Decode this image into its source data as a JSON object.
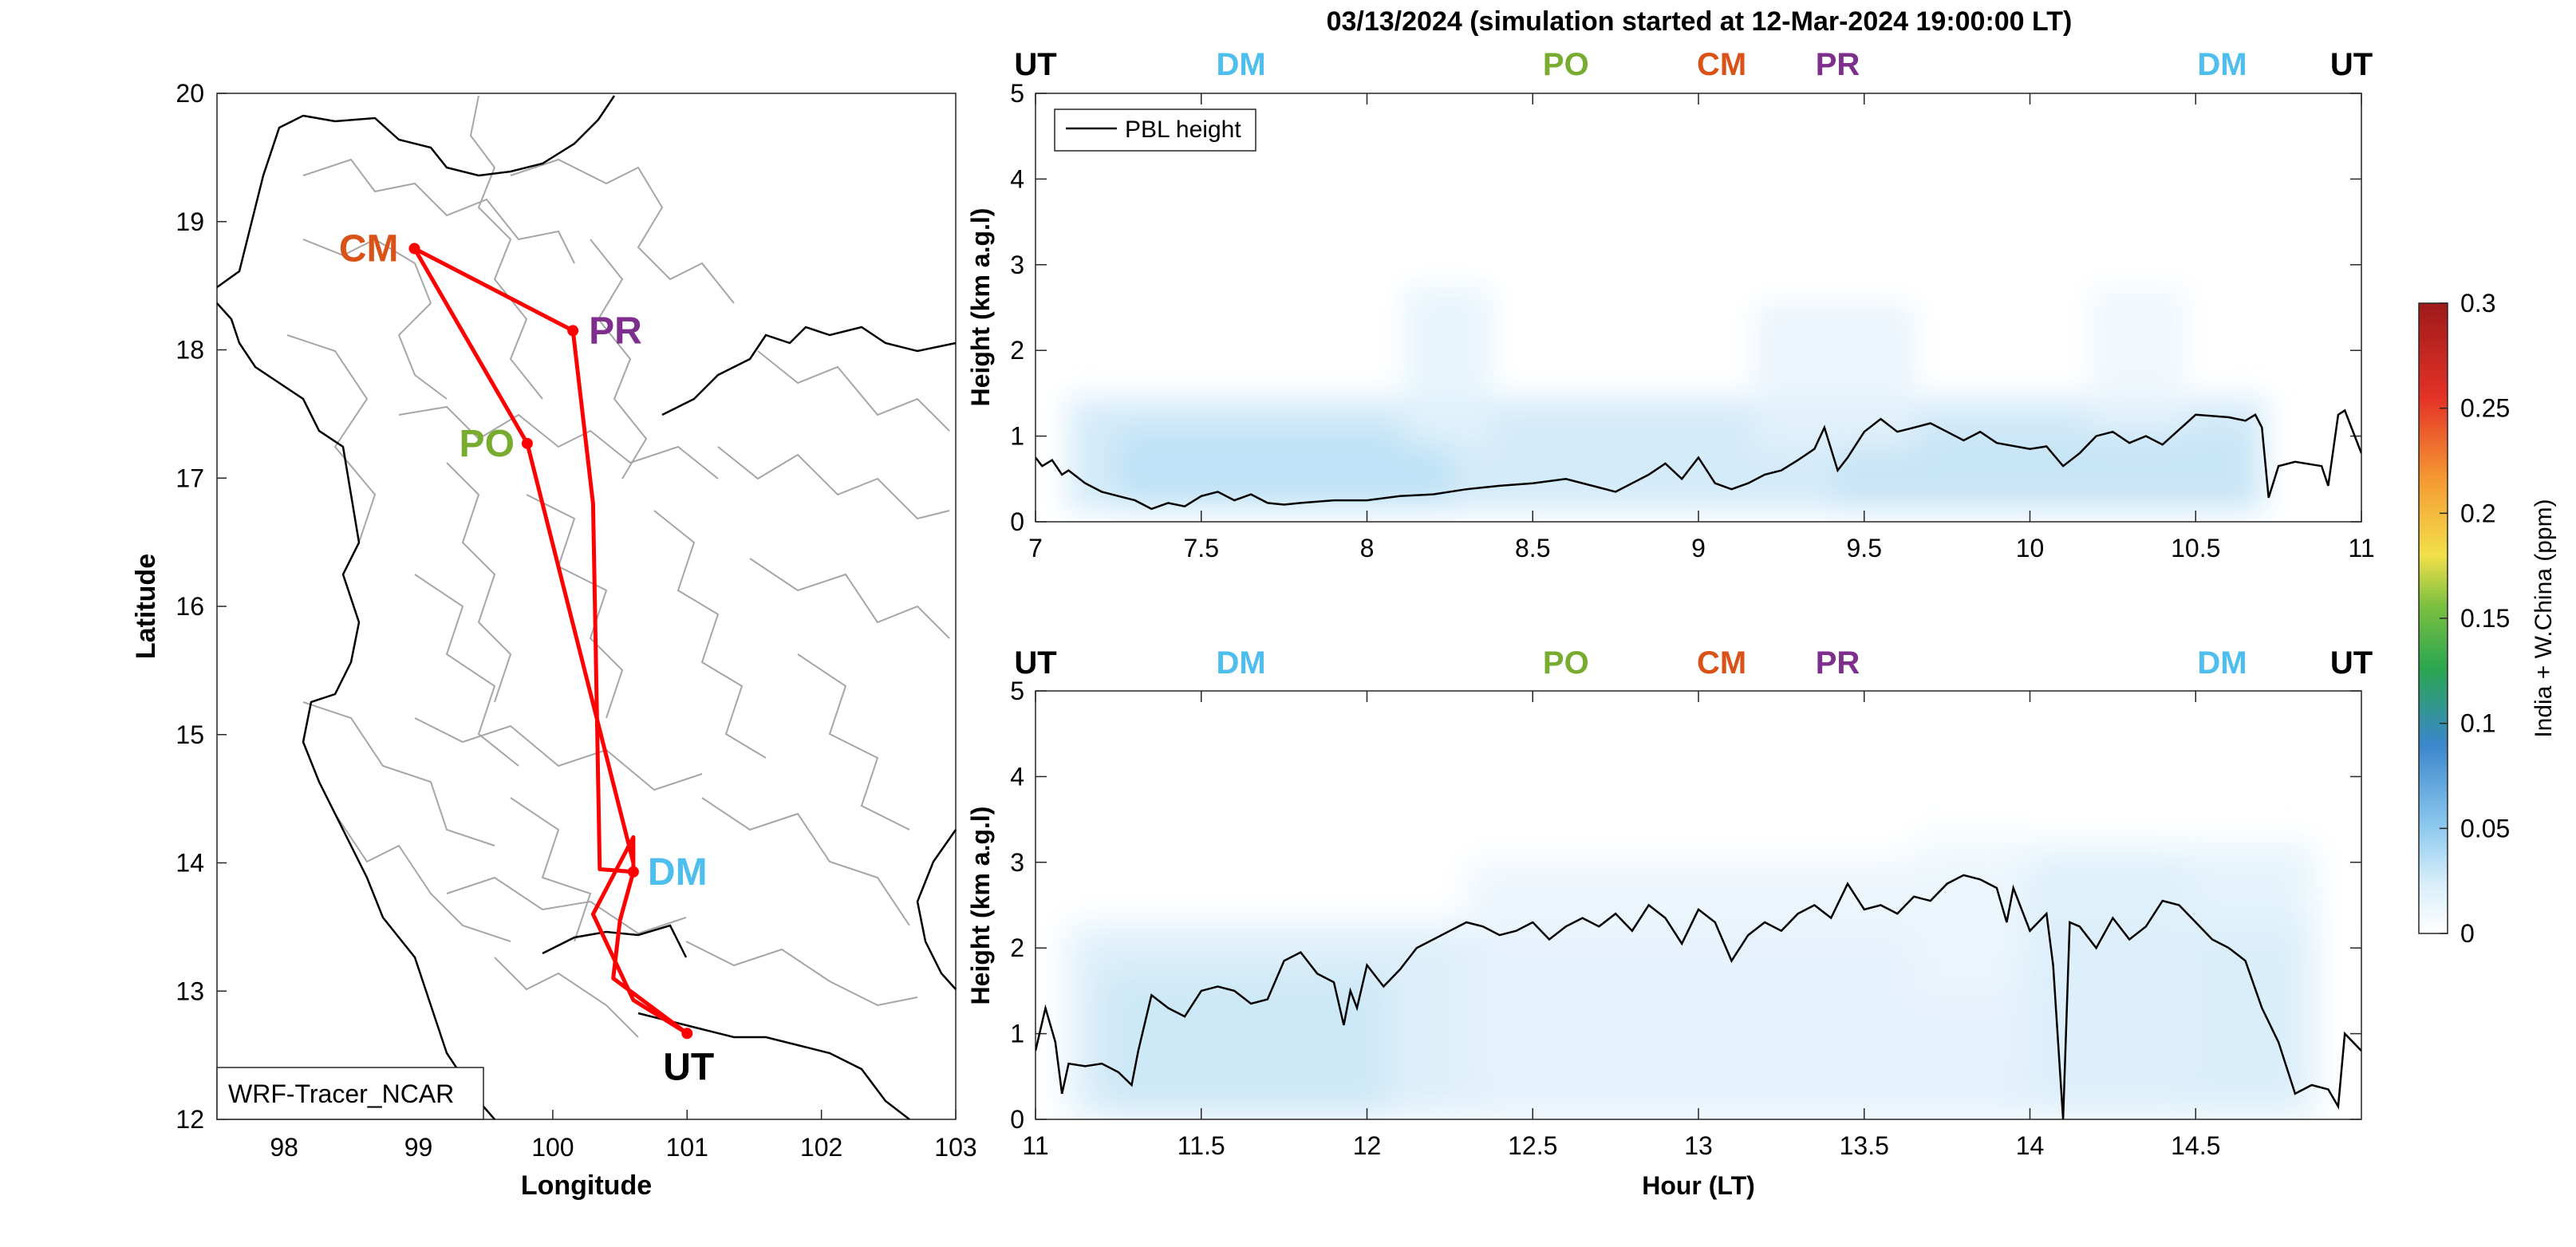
{
  "figure": {
    "title": "03/13/2024 (simulation started at 12-Mar-2024 19:00:00 LT)"
  },
  "colors": {
    "UT": "#000000",
    "DM": "#4DBEEE",
    "PO": "#77AC30",
    "CM": "#D95319",
    "PR": "#7E2F8E",
    "track": "#FF0000",
    "pbl": "#000000",
    "border": "#999999",
    "coast": "#000000"
  },
  "chart_data": [
    {
      "type": "line",
      "id": "map",
      "xlabel": "Longitude",
      "ylabel": "Latitude",
      "xlim": [
        97.5,
        103
      ],
      "ylim": [
        12,
        20
      ],
      "xticks": [
        98,
        99,
        100,
        101,
        102,
        103
      ],
      "yticks": [
        12,
        13,
        14,
        15,
        16,
        17,
        18,
        19,
        20
      ],
      "legend": {
        "text": "WRF-Tracer_NCAR",
        "position": "bottom-left"
      },
      "stations": [
        {
          "code": "CM",
          "lon": 98.97,
          "lat": 18.79
        },
        {
          "code": "PR",
          "lon": 100.15,
          "lat": 18.15
        },
        {
          "code": "PO",
          "lon": 99.81,
          "lat": 17.27
        },
        {
          "code": "DM",
          "lon": 100.6,
          "lat": 13.93
        },
        {
          "code": "UT",
          "lon": 101.0,
          "lat": 12.67
        }
      ],
      "track": [
        [
          101.0,
          12.67
        ],
        [
          100.6,
          12.93
        ],
        [
          100.3,
          13.6
        ],
        [
          100.6,
          14.2
        ],
        [
          100.6,
          13.93
        ],
        [
          100.6,
          14.0
        ],
        [
          99.81,
          17.27
        ],
        [
          98.97,
          18.79
        ],
        [
          100.15,
          18.15
        ],
        [
          100.3,
          16.8
        ],
        [
          100.35,
          13.95
        ],
        [
          100.6,
          13.93
        ],
        [
          100.5,
          13.55
        ],
        [
          100.45,
          13.1
        ],
        [
          101.0,
          12.67
        ]
      ]
    },
    {
      "type": "line",
      "id": "top",
      "ylabel": "Height (km a.g.l)",
      "xlabel": "",
      "xlim": [
        7,
        11
      ],
      "ylim": [
        0,
        5
      ],
      "xticks": [
        7,
        7.5,
        8,
        8.5,
        9,
        9.5,
        10,
        10.5,
        11
      ],
      "yticks": [
        0,
        1,
        2,
        3,
        4,
        5
      ],
      "legend": {
        "text": "PBL height",
        "position": "top-left"
      },
      "markers": [
        {
          "code": "UT",
          "x": 7.0
        },
        {
          "code": "DM",
          "x": 7.62
        },
        {
          "code": "PO",
          "x": 8.6
        },
        {
          "code": "CM",
          "x": 9.07
        },
        {
          "code": "PR",
          "x": 9.42
        },
        {
          "code": "DM",
          "x": 10.58
        },
        {
          "code": "UT",
          "x": 10.97
        }
      ],
      "series": [
        {
          "x": [
            7.0,
            7.02,
            7.05,
            7.08,
            7.1,
            7.15,
            7.2,
            7.25,
            7.3,
            7.35,
            7.4,
            7.45,
            7.5,
            7.55,
            7.6,
            7.65,
            7.7,
            7.75,
            7.8,
            7.9,
            8.0,
            8.1,
            8.2,
            8.3,
            8.4,
            8.5,
            8.6,
            8.7,
            8.75,
            8.8,
            8.85,
            8.9,
            8.95,
            9.0,
            9.05,
            9.1,
            9.15,
            9.2,
            9.25,
            9.3,
            9.35,
            9.38,
            9.42,
            9.45,
            9.5,
            9.55,
            9.6,
            9.65,
            9.7,
            9.75,
            9.8,
            9.85,
            9.9,
            10.0,
            10.05,
            10.1,
            10.15,
            10.2,
            10.25,
            10.3,
            10.35,
            10.4,
            10.5,
            10.6,
            10.65,
            10.68,
            10.7,
            10.72,
            10.75,
            10.8,
            10.88,
            10.9,
            10.93,
            10.95,
            11.0
          ],
          "y": [
            0.75,
            0.65,
            0.72,
            0.55,
            0.6,
            0.45,
            0.35,
            0.3,
            0.25,
            0.15,
            0.22,
            0.18,
            0.3,
            0.35,
            0.25,
            0.32,
            0.22,
            0.2,
            0.22,
            0.25,
            0.25,
            0.3,
            0.32,
            0.38,
            0.42,
            0.45,
            0.5,
            0.4,
            0.35,
            0.45,
            0.55,
            0.68,
            0.5,
            0.75,
            0.45,
            0.38,
            0.45,
            0.55,
            0.6,
            0.72,
            0.85,
            1.1,
            0.6,
            0.75,
            1.05,
            1.2,
            1.05,
            1.1,
            1.15,
            1.05,
            0.95,
            1.05,
            0.92,
            0.85,
            0.88,
            0.65,
            0.8,
            1.0,
            1.05,
            0.92,
            1.0,
            0.9,
            1.25,
            1.22,
            1.18,
            1.25,
            1.1,
            0.28,
            0.65,
            0.7,
            0.65,
            0.42,
            1.25,
            1.3,
            0.8
          ]
        }
      ]
    },
    {
      "type": "line",
      "id": "bottom",
      "ylabel": "Height (km a.g.l)",
      "xlabel": "Hour (LT)",
      "xlim": [
        11,
        15
      ],
      "ylim": [
        0,
        5
      ],
      "xticks": [
        11,
        11.5,
        12,
        12.5,
        13,
        13.5,
        14,
        14.5
      ],
      "yticks": [
        0,
        1,
        2,
        3,
        4,
        5
      ],
      "markers": [
        {
          "code": "UT",
          "x": 11.0
        },
        {
          "code": "DM",
          "x": 11.62
        },
        {
          "code": "PO",
          "x": 12.6
        },
        {
          "code": "CM",
          "x": 13.07
        },
        {
          "code": "PR",
          "x": 13.42
        },
        {
          "code": "DM",
          "x": 14.58
        },
        {
          "code": "UT",
          "x": 14.97
        }
      ],
      "series": [
        {
          "x": [
            11.0,
            11.03,
            11.06,
            11.08,
            11.1,
            11.15,
            11.2,
            11.25,
            11.29,
            11.31,
            11.35,
            11.4,
            11.45,
            11.5,
            11.55,
            11.6,
            11.65,
            11.7,
            11.75,
            11.8,
            11.85,
            11.9,
            11.93,
            11.95,
            11.97,
            12.0,
            12.05,
            12.1,
            12.15,
            12.2,
            12.25,
            12.3,
            12.35,
            12.4,
            12.45,
            12.5,
            12.55,
            12.6,
            12.65,
            12.7,
            12.75,
            12.8,
            12.85,
            12.9,
            12.95,
            13.0,
            13.05,
            13.1,
            13.15,
            13.2,
            13.25,
            13.3,
            13.35,
            13.4,
            13.45,
            13.5,
            13.55,
            13.6,
            13.65,
            13.7,
            13.75,
            13.8,
            13.85,
            13.9,
            13.93,
            13.95,
            14.0,
            14.05,
            14.07,
            14.09,
            14.1,
            14.12,
            14.15,
            14.2,
            14.25,
            14.3,
            14.35,
            14.4,
            14.45,
            14.5,
            14.55,
            14.6,
            14.65,
            14.7,
            14.75,
            14.8,
            14.85,
            14.9,
            14.93,
            14.95,
            15.0
          ],
          "y": [
            0.8,
            1.3,
            0.9,
            0.3,
            0.65,
            0.62,
            0.65,
            0.55,
            0.4,
            0.8,
            1.45,
            1.3,
            1.2,
            1.5,
            1.55,
            1.5,
            1.35,
            1.4,
            1.85,
            1.95,
            1.7,
            1.6,
            1.1,
            1.5,
            1.3,
            1.8,
            1.55,
            1.75,
            2.0,
            2.1,
            2.2,
            2.3,
            2.25,
            2.15,
            2.2,
            2.3,
            2.1,
            2.25,
            2.35,
            2.25,
            2.4,
            2.2,
            2.5,
            2.35,
            2.05,
            2.45,
            2.3,
            1.85,
            2.15,
            2.3,
            2.2,
            2.4,
            2.5,
            2.35,
            2.75,
            2.45,
            2.5,
            2.4,
            2.6,
            2.55,
            2.75,
            2.85,
            2.8,
            2.7,
            2.3,
            2.7,
            2.2,
            2.4,
            1.8,
            0.6,
            0.0,
            2.3,
            2.25,
            2.0,
            2.35,
            2.1,
            2.25,
            2.55,
            2.5,
            2.3,
            2.1,
            2.0,
            1.85,
            1.3,
            0.9,
            0.3,
            0.4,
            0.35,
            0.15,
            1.0,
            0.8
          ]
        }
      ]
    }
  ],
  "colorbar": {
    "label": "India + W.China (ppm)",
    "ticks": [
      "0",
      "0.05",
      "0.1",
      "0.15",
      "0.2",
      "0.25",
      "0.3"
    ],
    "min": 0,
    "max": 0.3
  }
}
